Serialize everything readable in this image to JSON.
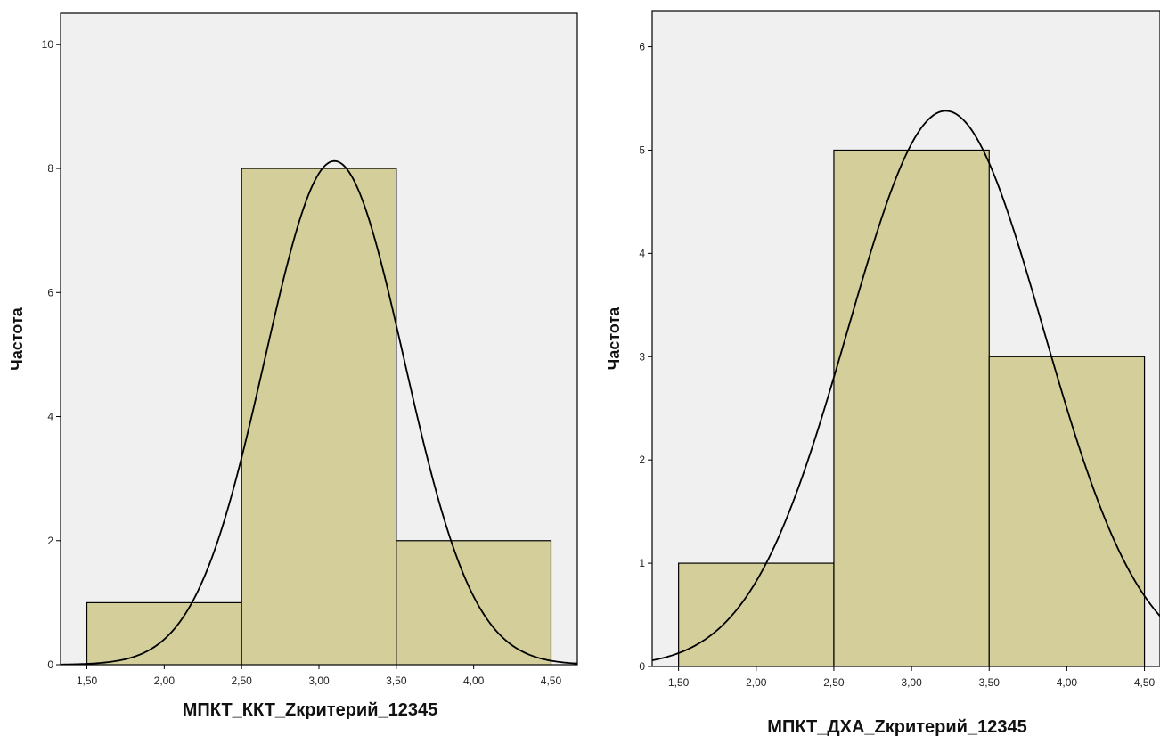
{
  "chart_data": [
    {
      "type": "bar",
      "histogram": true,
      "title": "",
      "xlabel": "МПКТ_ККТ_Zкритерий_12345",
      "ylabel": "Частота",
      "xlim": [
        1.33,
        4.67
      ],
      "ylim": [
        0,
        10.5
      ],
      "x_ticks": [
        "1,50",
        "2,00",
        "2,50",
        "3,00",
        "3,50",
        "4,00",
        "4,50"
      ],
      "y_ticks": [
        "0",
        "2",
        "4",
        "6",
        "8",
        "10"
      ],
      "bins": [
        {
          "from": 1.5,
          "to": 2.5,
          "value": 1
        },
        {
          "from": 2.5,
          "to": 3.5,
          "value": 8
        },
        {
          "from": 3.5,
          "to": 4.5,
          "value": 2
        }
      ],
      "normal_curve": {
        "mean": 3.1,
        "sd": 0.45,
        "peak": 8.12
      },
      "grid": false,
      "colors": {
        "bar_fill": "#d4cf9a",
        "plot_bg": "#f0f0f0",
        "curve": "#000000"
      }
    },
    {
      "type": "bar",
      "histogram": true,
      "title": "",
      "xlabel": "МПКТ_ДХА_Zкритерий_12345",
      "ylabel": "Частота",
      "xlim": [
        1.33,
        4.6
      ],
      "ylim": [
        0,
        6.35
      ],
      "x_ticks": [
        "1,50",
        "2,00",
        "2,50",
        "3,00",
        "3,50",
        "4,00",
        "4,50"
      ],
      "y_ticks": [
        "0",
        "1",
        "2",
        "3",
        "4",
        "5",
        "6"
      ],
      "bins": [
        {
          "from": 1.5,
          "to": 2.5,
          "value": 1
        },
        {
          "from": 2.5,
          "to": 3.5,
          "value": 5
        },
        {
          "from": 3.5,
          "to": 4.5,
          "value": 3
        }
      ],
      "normal_curve": {
        "mean": 3.22,
        "sd": 0.63,
        "peak": 5.38
      },
      "grid": false,
      "colors": {
        "bar_fill": "#d4cf9a",
        "plot_bg": "#f0f0f0",
        "curve": "#000000"
      }
    }
  ]
}
